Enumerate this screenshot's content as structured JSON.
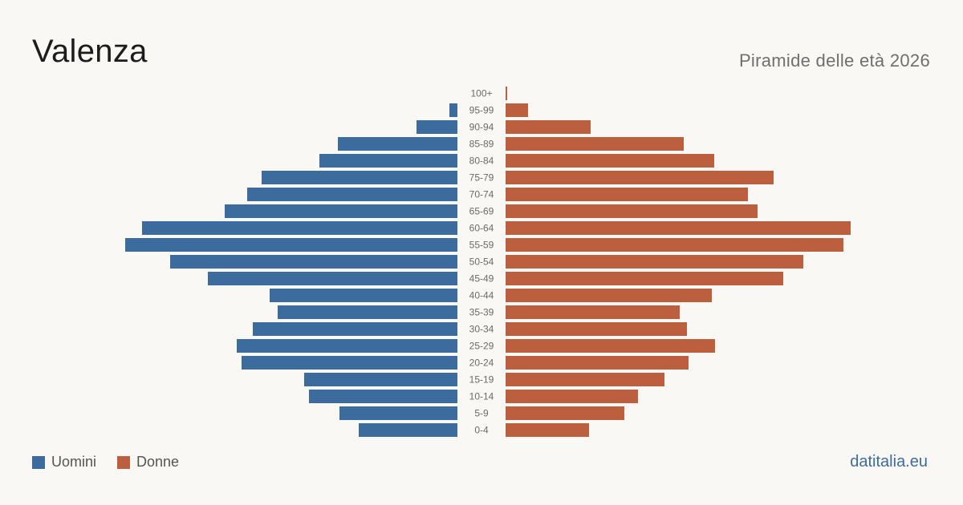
{
  "header": {
    "title": "Valenza",
    "subtitle": "Piramide delle età 2026"
  },
  "legend": {
    "men_label": "Uomini",
    "women_label": "Donne"
  },
  "colors": {
    "men": "#3c6b9d",
    "women": "#bb5f3e",
    "background": "#f9f8f4"
  },
  "brand": "datitalia.eu",
  "chart_data": {
    "type": "bar",
    "orientation": "horizontal-pyramid",
    "categories": [
      "100+",
      "95-99",
      "90-94",
      "85-89",
      "80-84",
      "75-79",
      "70-74",
      "65-69",
      "60-64",
      "55-59",
      "50-54",
      "45-49",
      "40-44",
      "35-39",
      "30-34",
      "25-29",
      "20-24",
      "15-19",
      "10-14",
      "5-9",
      "0-4"
    ],
    "series": [
      {
        "name": "Uomini",
        "side": "left",
        "values": [
          0,
          10,
          51,
          149,
          172,
          244,
          262,
          290,
          393,
          414,
          358,
          311,
          234,
          224,
          255,
          275,
          269,
          191,
          185,
          147,
          123
        ]
      },
      {
        "name": "Donne",
        "side": "right",
        "values": [
          2,
          28,
          106,
          222,
          260,
          334,
          302,
          314,
          430,
          421,
          371,
          346,
          257,
          217,
          226,
          261,
          228,
          198,
          165,
          148,
          104
        ]
      }
    ],
    "legend_position": "bottom-left",
    "grid": false
  }
}
